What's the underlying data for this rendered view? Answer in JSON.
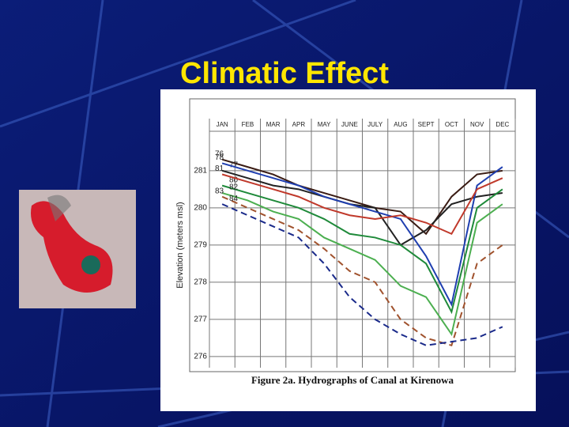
{
  "title": "Climatic Effect",
  "chart_data": {
    "type": "line",
    "caption": "Figure 2a. Hydrographs of Canal at Kirenowa",
    "ylabel": "Elevation (meters msl)",
    "categories": [
      "JAN",
      "FEB",
      "MAR",
      "APR",
      "MAY",
      "JUNE",
      "JULY",
      "AUG",
      "SEPT",
      "OCT",
      "NOV",
      "DEC"
    ],
    "ylim": [
      275.7,
      282.4
    ],
    "yticks": [
      276,
      277,
      278,
      279,
      280,
      281
    ],
    "grid": true,
    "series": [
      {
        "name": "76",
        "color": "#3a1c14",
        "dash": false,
        "values": [
          281.3,
          281.1,
          280.9,
          280.6,
          280.4,
          280.2,
          280.0,
          279.9,
          279.3,
          280.3,
          280.9,
          281.0
        ]
      },
      {
        "name": "77",
        "color": "#222222",
        "dash": false,
        "values": [
          281.0,
          280.8,
          280.6,
          280.5,
          280.3,
          280.1,
          280.0,
          279.0,
          279.4,
          280.1,
          280.3,
          280.4
        ]
      },
      {
        "name": "78",
        "color": "#1f3fb0",
        "dash": false,
        "values": [
          281.2,
          281.0,
          280.8,
          280.6,
          280.3,
          280.1,
          279.9,
          279.7,
          278.7,
          277.4,
          280.6,
          281.1
        ]
      },
      {
        "name": "80",
        "color": "#1f8a3a",
        "dash": false,
        "values": [
          280.6,
          280.4,
          280.2,
          280.0,
          279.7,
          279.3,
          279.2,
          279.0,
          278.5,
          277.2,
          280.0,
          280.5
        ]
      },
      {
        "name": "81",
        "color": "#c0392b",
        "dash": false,
        "values": [
          280.9,
          280.7,
          280.5,
          280.3,
          280.0,
          279.8,
          279.7,
          279.8,
          279.6,
          279.3,
          280.5,
          280.8
        ]
      },
      {
        "name": "82",
        "color": "#4caf50",
        "dash": false,
        "values": [
          280.4,
          280.2,
          279.9,
          279.7,
          279.2,
          278.9,
          278.6,
          277.9,
          277.6,
          276.6,
          279.6,
          280.1
        ]
      },
      {
        "name": "83",
        "color": "#a0522d",
        "dash": true,
        "values": [
          280.3,
          280.0,
          279.7,
          279.4,
          278.9,
          278.3,
          278.0,
          277.0,
          276.5,
          276.3,
          278.5,
          279.0
        ]
      },
      {
        "name": "84",
        "color": "#1a2a8a",
        "dash": true,
        "values": [
          280.1,
          279.8,
          279.5,
          279.2,
          278.5,
          277.6,
          277.0,
          276.6,
          276.3,
          276.4,
          276.5,
          276.8
        ]
      }
    ]
  }
}
